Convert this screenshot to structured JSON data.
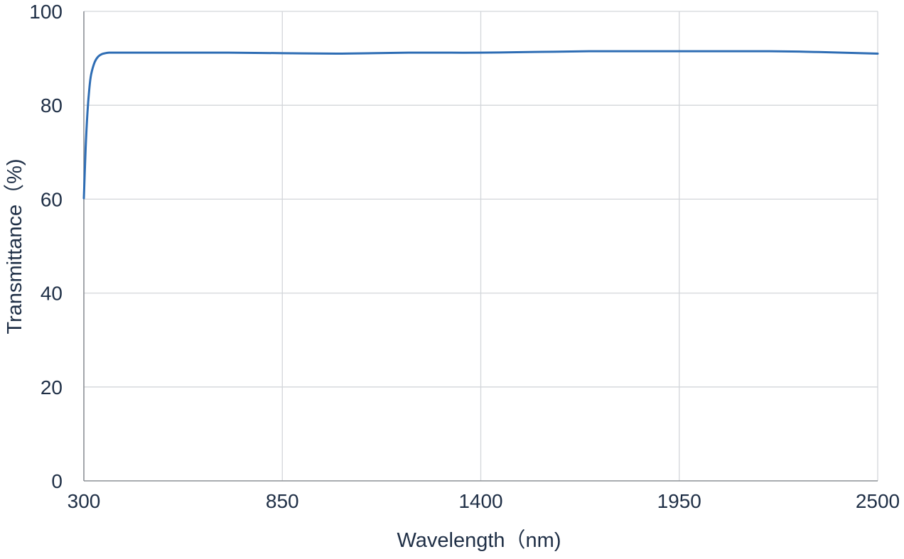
{
  "chart_data": {
    "type": "line",
    "title": "",
    "xlabel": "Wavelength（nm)",
    "ylabel": "Transmittance（%)",
    "xlim": [
      300,
      2500
    ],
    "ylim": [
      0,
      100
    ],
    "x_ticks": [
      300,
      850,
      1400,
      1950,
      2500
    ],
    "x_tick_labels": [
      "300",
      "850",
      "1400",
      "1950",
      "2500"
    ],
    "y_ticks": [
      0,
      20,
      40,
      60,
      80,
      100
    ],
    "y_tick_labels": [
      "0",
      "20",
      "40",
      "60",
      "80",
      "100"
    ],
    "grid": true,
    "legend": "none",
    "series": [
      {
        "color": "#2e6db4",
        "x": [
          300,
          305,
          310,
          315,
          320,
          330,
          340,
          350,
          360,
          370,
          380,
          400,
          500,
          600,
          700,
          850,
          1000,
          1100,
          1200,
          1300,
          1400,
          1500,
          1600,
          1700,
          1800,
          1950,
          2100,
          2200,
          2300,
          2400,
          2500
        ],
        "y": [
          60.2,
          71.0,
          78.5,
          83.4,
          86.5,
          89.2,
          90.4,
          90.9,
          91.1,
          91.2,
          91.2,
          91.2,
          91.2,
          91.2,
          91.2,
          91.1,
          91.0,
          91.1,
          91.2,
          91.2,
          91.2,
          91.3,
          91.4,
          91.5,
          91.5,
          91.5,
          91.5,
          91.5,
          91.4,
          91.2,
          91.0
        ]
      }
    ]
  }
}
